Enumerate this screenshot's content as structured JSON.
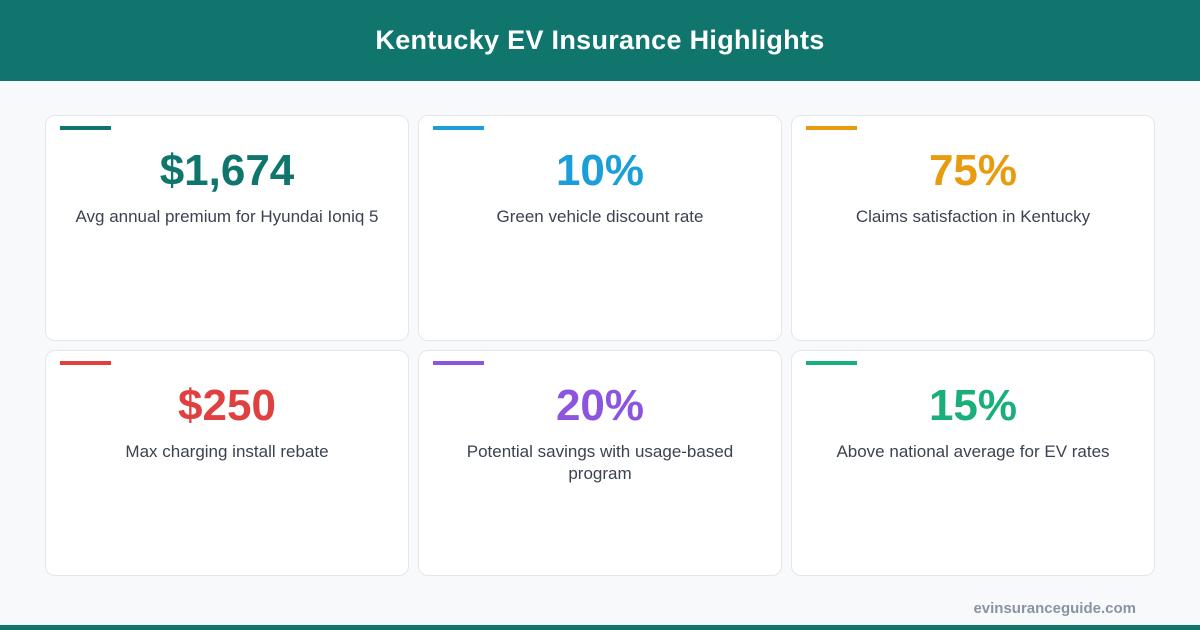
{
  "header": {
    "title": "Kentucky EV Insurance Highlights"
  },
  "colors": {
    "header_bg": "#10766d",
    "teal": "#10766d",
    "blue": "#1a9fd9",
    "orange": "#e99b10",
    "red": "#e0403f",
    "purple": "#8b55e0",
    "green": "#1aae78"
  },
  "cards": [
    {
      "value": "$1,674",
      "label": "Avg annual premium for Hyundai Ioniq 5",
      "color": "#10766d"
    },
    {
      "value": "10%",
      "label": "Green vehicle discount rate",
      "color": "#1a9fd9"
    },
    {
      "value": "75%",
      "label": "Claims satisfaction in Kentucky",
      "color": "#e99b10"
    },
    {
      "value": "$250",
      "label": "Max charging install rebate",
      "color": "#e0403f"
    },
    {
      "value": "20%",
      "label": "Potential savings with usage-based program",
      "color": "#8b55e0"
    },
    {
      "value": "15%",
      "label": "Above national average for EV rates",
      "color": "#1aae78"
    }
  ],
  "footer": {
    "site": "evinsuranceguide.com"
  }
}
